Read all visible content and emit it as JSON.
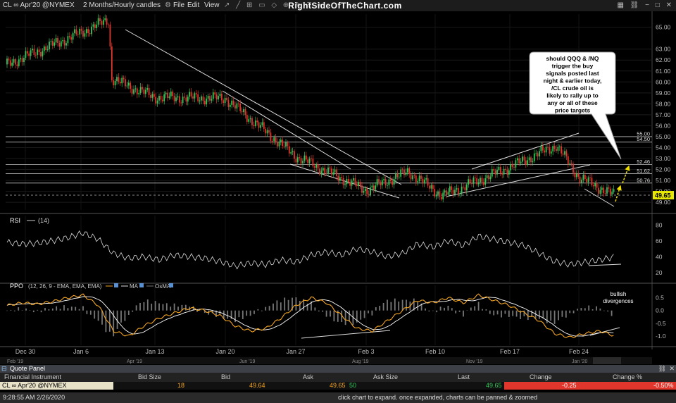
{
  "toolbar": {
    "symbol": "CL ∞ Apr'20 @NYMEX",
    "timeframe": "2 Months/Hourly candles",
    "menu": [
      "File",
      "Edit",
      "View"
    ],
    "brand": "RightSideOfTheChart.com"
  },
  "chart_data": [
    {
      "type": "candlestick",
      "title": "",
      "price_labels": [
        "65.00",
        "63.00",
        "62.00",
        "61.00",
        "60.00",
        "59.00",
        "58.00",
        "57.00",
        "56.00",
        "55.00",
        "54.00",
        "53.00",
        "52.00",
        "51.00",
        "50.00",
        "49.00"
      ],
      "ylim": [
        48.3,
        66.2
      ],
      "x_labels": [
        "Dec 30",
        "Jan 6",
        "Jan 13",
        "Jan 20",
        "Jan 27",
        "Feb 3",
        "Feb 10",
        "Feb 17",
        "Feb 24"
      ],
      "overview_labels": [
        "Feb '19",
        "Apr '19",
        "Jun '19",
        "Aug '19",
        "Nov '19",
        "Jan '20"
      ],
      "last_price": "49.65",
      "horizontal_levels": [
        {
          "label": "55.00",
          "value": 55.0
        },
        {
          "label": "54.50",
          "value": 54.5
        },
        {
          "label": "52.46",
          "value": 52.46
        },
        {
          "label": "51.62",
          "value": 51.62
        },
        {
          "label": "50.76",
          "value": 50.76
        }
      ],
      "key_prices": [
        {
          "date": "Dec 30",
          "value": 61.6
        },
        {
          "date": "Jan 6",
          "value": 64.5
        },
        {
          "date": "Jan 8 high",
          "value": 65.7
        },
        {
          "date": "Jan 8 low",
          "value": 60.3
        },
        {
          "date": "Jan 13",
          "value": 58.6
        },
        {
          "date": "Jan 20",
          "value": 58.5
        },
        {
          "date": "Jan 27",
          "value": 53.2
        },
        {
          "date": "Feb 3",
          "value": 50.1
        },
        {
          "date": "Feb 6",
          "value": 51.8
        },
        {
          "date": "Feb 10",
          "value": 49.6
        },
        {
          "date": "Feb 17",
          "value": 52.2
        },
        {
          "date": "Feb 20",
          "value": 54.2
        },
        {
          "date": "Feb 24",
          "value": 51.3
        },
        {
          "date": "Feb 26",
          "value": 49.65
        }
      ],
      "annotation": "should QQQ & /NQ trigger the buy signals posted last night & earlier today, /CL crude oil is likely to rally up to any or all of these price targets"
    },
    {
      "type": "line",
      "name": "RSI",
      "params": "(14)",
      "ticks": [
        "80",
        "60",
        "40",
        "20"
      ],
      "ylim": [
        10,
        90
      ],
      "values": [
        58,
        56,
        57,
        60,
        64,
        70,
        62,
        44,
        38,
        40,
        36,
        42,
        40,
        38,
        34,
        28,
        32,
        30,
        36,
        33,
        42,
        46,
        42,
        50,
        46,
        40,
        44,
        56,
        52,
        60,
        54,
        66,
        62,
        58,
        54,
        44,
        34,
        30,
        33,
        36,
        40
      ]
    },
    {
      "type": "line",
      "name": "PPO",
      "params": "(12, 26, 9 - EMA, EMA, EMA)",
      "legend": [
        "MA",
        "OsMA"
      ],
      "ticks": [
        "0.5",
        "0.0",
        "-0.5",
        "-1.0"
      ],
      "ylim": [
        -1.3,
        0.9
      ],
      "values": [
        0.2,
        0.3,
        0.25,
        0.35,
        0.5,
        0.6,
        0.2,
        -0.8,
        -1.0,
        -0.6,
        -0.3,
        -0.1,
        0.1,
        0.0,
        -0.2,
        -0.6,
        -0.8,
        -0.7,
        -0.3,
        0.2,
        0.5,
        0.3,
        -0.2,
        -0.7,
        -0.8,
        -0.4,
        0.0,
        0.4,
        0.3,
        0.5,
        0.3,
        0.6,
        0.4,
        0.2,
        -0.1,
        -0.4,
        -0.9,
        -1.05,
        -0.9,
        -0.8,
        -1.0
      ],
      "annotation": "bullish divergences"
    }
  ],
  "quote_panel": {
    "title": "Quote Panel",
    "columns": [
      "Financial Instrument",
      "Bid Size",
      "Bid",
      "Ask",
      "Ask Size",
      "Last",
      "Change",
      "Change %"
    ],
    "row": {
      "instrument": "CL ∞ Apr'20 @NYMEX",
      "bid_size": "18",
      "bid": "49.64",
      "ask": "49.65",
      "ask_size": "50",
      "last": "49.65",
      "change": "-0.25",
      "change_pct": "-0.50%"
    }
  },
  "status": {
    "time": "9:28:55 AM 2/26/2020",
    "hint": "click chart to expand. once expanded, charts can be panned & zoomed"
  },
  "colors": {
    "up": "#34c759",
    "down": "#e0362c",
    "ppo": "#f5a623",
    "ma": "#ffffff",
    "osma": "#777777",
    "price_tag": "#e8e800",
    "change_bg": "#e0362c"
  }
}
